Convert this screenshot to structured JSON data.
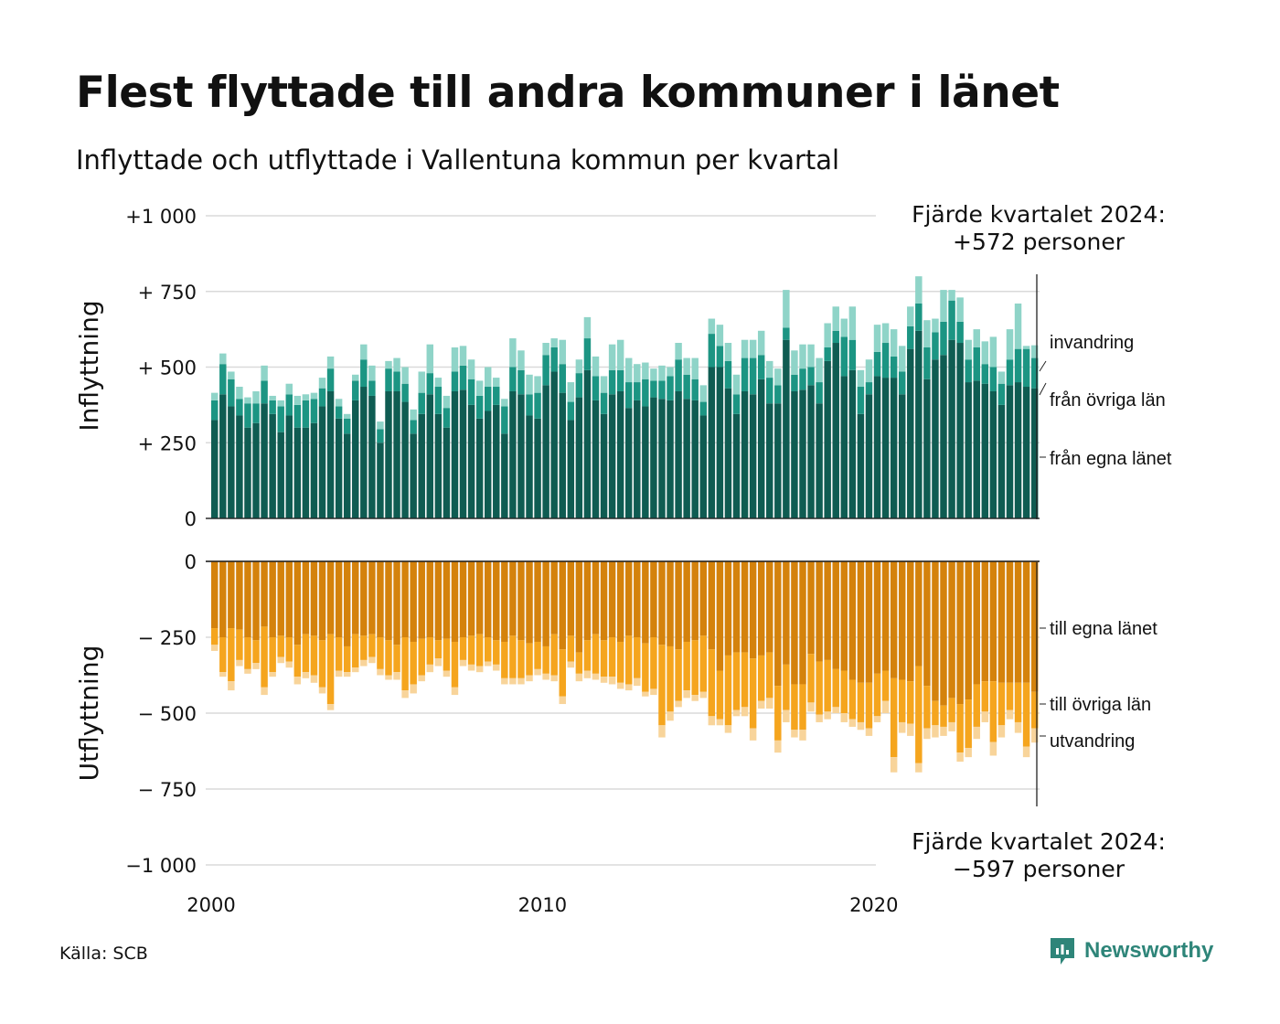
{
  "title": "Flest flyttade till andra kommuner i länet",
  "subtitle": "Inflyttade och utflyttade i Vallentuna kommun per kvartal",
  "source": "Källa: SCB",
  "brand": "Newsworthy",
  "colors": {
    "in_egna": "#0f5c52",
    "in_ovriga": "#1c9583",
    "in_invandring": "#8fd4c8",
    "out_egna": "#d4820c",
    "out_ovriga": "#f5a51e",
    "out_utvandring": "#f8d49a",
    "brand": "#2e8579"
  },
  "chart_data": {
    "type": "bar",
    "stacked": true,
    "axis_scale_label_top": "Inflyttning",
    "axis_scale_label_bottom": "Utflyttning",
    "y_ticks_top": [
      "+1 000",
      "+  750",
      "+  500",
      "+  250",
      "0"
    ],
    "y_ticks_bottom": [
      "0",
      "−  250",
      "−  500",
      "−  750",
      "−1 000"
    ],
    "ylim_top": [
      0,
      1000
    ],
    "ylim_bottom": [
      0,
      -1000
    ],
    "x_start": "2000-Q1",
    "x_end": "2024-Q4",
    "x_ticks": [
      "2000",
      "2010",
      "2020"
    ],
    "legend_in": [
      "invandring",
      "från övriga län",
      "från egna länet"
    ],
    "legend_out": [
      "till egna länet",
      "till övriga län",
      "utvandring"
    ],
    "annotation_top": [
      "Fjärde kvartalet 2024:",
      "+572 personer"
    ],
    "annotation_bottom": [
      "Fjärde kvartalet 2024:",
      "−597 personer"
    ],
    "series_in": [
      {
        "name": "från egna länet",
        "values": [
          325,
          410,
          370,
          340,
          300,
          315,
          380,
          345,
          285,
          340,
          300,
          300,
          315,
          370,
          420,
          330,
          280,
          390,
          435,
          405,
          250,
          420,
          420,
          385,
          280,
          345,
          410,
          345,
          300,
          420,
          425,
          375,
          330,
          355,
          375,
          280,
          420,
          410,
          340,
          330,
          440,
          485,
          415,
          325,
          400,
          490,
          390,
          345,
          410,
          420,
          365,
          390,
          370,
          400,
          395,
          390,
          420,
          395,
          390,
          340,
          500,
          500,
          430,
          345,
          420,
          410,
          460,
          380,
          380,
          590,
          420,
          425,
          440,
          380,
          520,
          580,
          470,
          490,
          345,
          410,
          470,
          465,
          465,
          410,
          560,
          620,
          460,
          525,
          540,
          590,
          580,
          450,
          455,
          445,
          420,
          375,
          440,
          450,
          435,
          430
        ]
      },
      {
        "name": "från övriga län",
        "values": [
          65,
          100,
          90,
          55,
          80,
          65,
          75,
          45,
          85,
          70,
          75,
          90,
          80,
          60,
          75,
          40,
          50,
          65,
          90,
          50,
          45,
          75,
          65,
          60,
          45,
          70,
          70,
          90,
          65,
          65,
          80,
          85,
          75,
          80,
          60,
          90,
          80,
          80,
          70,
          85,
          100,
          80,
          95,
          60,
          80,
          105,
          80,
          70,
          80,
          70,
          85,
          60,
          90,
          55,
          60,
          80,
          105,
          80,
          70,
          45,
          110,
          70,
          90,
          65,
          110,
          120,
          80,
          85,
          60,
          40,
          55,
          70,
          60,
          70,
          45,
          40,
          130,
          100,
          90,
          40,
          80,
          115,
          70,
          75,
          75,
          90,
          105,
          90,
          110,
          130,
          70,
          75,
          110,
          65,
          80,
          70,
          85,
          110,
          125,
          100
        ]
      },
      {
        "name": "invandring",
        "values": [
          25,
          35,
          25,
          40,
          20,
          40,
          50,
          15,
          20,
          35,
          30,
          20,
          20,
          35,
          40,
          25,
          15,
          20,
          50,
          50,
          25,
          25,
          45,
          55,
          35,
          70,
          95,
          30,
          40,
          80,
          65,
          65,
          50,
          65,
          30,
          25,
          95,
          65,
          65,
          55,
          40,
          30,
          80,
          65,
          45,
          70,
          65,
          55,
          85,
          100,
          80,
          60,
          55,
          40,
          50,
          30,
          55,
          55,
          70,
          55,
          50,
          70,
          60,
          65,
          60,
          60,
          80,
          55,
          55,
          125,
          80,
          80,
          75,
          80,
          80,
          80,
          60,
          110,
          55,
          75,
          90,
          65,
          90,
          85,
          65,
          90,
          90,
          45,
          105,
          35,
          80,
          65,
          60,
          75,
          100,
          40,
          100,
          150,
          10,
          42
        ]
      }
    ],
    "series_out": [
      {
        "name": "till egna länet",
        "values": [
          220,
          250,
          220,
          225,
          250,
          260,
          215,
          250,
          245,
          250,
          275,
          240,
          245,
          260,
          240,
          250,
          280,
          240,
          245,
          240,
          250,
          260,
          275,
          250,
          265,
          255,
          250,
          260,
          255,
          265,
          250,
          245,
          240,
          250,
          260,
          265,
          245,
          260,
          270,
          265,
          280,
          240,
          290,
          245,
          300,
          260,
          240,
          260,
          250,
          265,
          245,
          250,
          270,
          250,
          275,
          280,
          290,
          265,
          260,
          245,
          290,
          360,
          310,
          300,
          300,
          320,
          310,
          300,
          410,
          340,
          405,
          405,
          305,
          330,
          325,
          355,
          360,
          390,
          400,
          400,
          370,
          360,
          385,
          390,
          395,
          345,
          410,
          460,
          475,
          450,
          470,
          455,
          405,
          395,
          395,
          400,
          400,
          400,
          400,
          430
        ]
      },
      {
        "name": "till övriga län",
        "values": [
          55,
          115,
          175,
          100,
          105,
          75,
          200,
          115,
          70,
          80,
          105,
          125,
          130,
          155,
          230,
          110,
          85,
          110,
          80,
          75,
          105,
          115,
          90,
          175,
          140,
          120,
          90,
          60,
          105,
          150,
          75,
          95,
          105,
          80,
          80,
          120,
          140,
          125,
          105,
          90,
          90,
          135,
          155,
          85,
          70,
          100,
          130,
          120,
          130,
          135,
          160,
          135,
          160,
          170,
          265,
          215,
          170,
          160,
          180,
          185,
          220,
          160,
          230,
          190,
          180,
          230,
          150,
          150,
          180,
          150,
          150,
          150,
          160,
          175,
          170,
          125,
          140,
          130,
          130,
          150,
          140,
          100,
          260,
          140,
          140,
          320,
          140,
          80,
          70,
          80,
          160,
          160,
          140,
          100,
          200,
          140,
          90,
          130,
          210,
          120
        ]
      },
      {
        "name": "utvandring",
        "values": [
          20,
          15,
          30,
          20,
          15,
          20,
          25,
          15,
          20,
          20,
          25,
          20,
          25,
          20,
          20,
          20,
          15,
          15,
          20,
          20,
          20,
          15,
          25,
          25,
          30,
          20,
          25,
          25,
          20,
          25,
          20,
          20,
          20,
          15,
          20,
          20,
          20,
          20,
          20,
          20,
          20,
          20,
          25,
          20,
          25,
          25,
          20,
          20,
          25,
          20,
          20,
          25,
          15,
          20,
          40,
          30,
          20,
          25,
          20,
          20,
          30,
          20,
          25,
          20,
          30,
          40,
          25,
          35,
          40,
          40,
          25,
          35,
          30,
          25,
          25,
          20,
          30,
          25,
          25,
          25,
          20,
          40,
          50,
          35,
          40,
          30,
          35,
          40,
          30,
          30,
          30,
          30,
          40,
          35,
          45,
          40,
          30,
          35,
          35,
          47
        ]
      }
    ]
  }
}
